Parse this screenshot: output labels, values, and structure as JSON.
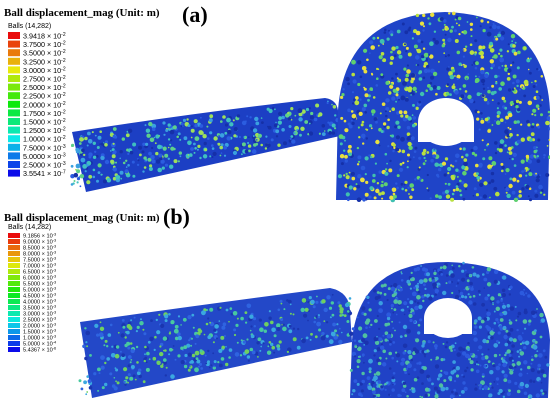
{
  "panels": [
    {
      "title": "Ball displacement_mag (Unit: m)",
      "label": "(a)",
      "legend_header": "Balls (14,282)",
      "legend": [
        {
          "mantissa": "3.9418 × 10",
          "exponent": "-2"
        },
        {
          "mantissa": "3.7500 × 10",
          "exponent": "-2"
        },
        {
          "mantissa": "3.5000 × 10",
          "exponent": "-2"
        },
        {
          "mantissa": "3.2500 × 10",
          "exponent": "-2"
        },
        {
          "mantissa": "3.0000 × 10",
          "exponent": "-2"
        },
        {
          "mantissa": "2.7500 × 10",
          "exponent": "-2"
        },
        {
          "mantissa": "2.5000 × 10",
          "exponent": "-2"
        },
        {
          "mantissa": "2.2500 × 10",
          "exponent": "-2"
        },
        {
          "mantissa": "2.0000 × 10",
          "exponent": "-2"
        },
        {
          "mantissa": "1.7500 × 10",
          "exponent": "-2"
        },
        {
          "mantissa": "1.5000 × 10",
          "exponent": "-2"
        },
        {
          "mantissa": "1.2500 × 10",
          "exponent": "-2"
        },
        {
          "mantissa": "1.0000 × 10",
          "exponent": "-2"
        },
        {
          "mantissa": "7.5000 × 10",
          "exponent": "-3"
        },
        {
          "mantissa": "5.0000 × 10",
          "exponent": "-3"
        },
        {
          "mantissa": "2.5000 × 10",
          "exponent": "-3"
        },
        {
          "mantissa": "3.5541 × 10",
          "exponent": "-7"
        }
      ]
    },
    {
      "title": "Ball displacement_mag (Unit: m)",
      "label": "(b)",
      "legend_header": "Balls (14,282)",
      "legend": [
        {
          "mantissa": "9.1856 × 10",
          "exponent": "-3"
        },
        {
          "mantissa": "9.0000 × 10",
          "exponent": "-3"
        },
        {
          "mantissa": "8.5000 × 10",
          "exponent": "-3"
        },
        {
          "mantissa": "8.0000 × 10",
          "exponent": "-3"
        },
        {
          "mantissa": "7.5000 × 10",
          "exponent": "-3"
        },
        {
          "mantissa": "7.0000 × 10",
          "exponent": "-3"
        },
        {
          "mantissa": "6.5000 × 10",
          "exponent": "-3"
        },
        {
          "mantissa": "6.0000 × 10",
          "exponent": "-3"
        },
        {
          "mantissa": "5.5000 × 10",
          "exponent": "-3"
        },
        {
          "mantissa": "5.0000 × 10",
          "exponent": "-3"
        },
        {
          "mantissa": "4.5000 × 10",
          "exponent": "-3"
        },
        {
          "mantissa": "4.0000 × 10",
          "exponent": "-3"
        },
        {
          "mantissa": "3.5000 × 10",
          "exponent": "-3"
        },
        {
          "mantissa": "3.0000 × 10",
          "exponent": "-3"
        },
        {
          "mantissa": "2.5000 × 10",
          "exponent": "-3"
        },
        {
          "mantissa": "2.0000 × 10",
          "exponent": "-3"
        },
        {
          "mantissa": "1.5000 × 10",
          "exponent": "-3"
        },
        {
          "mantissa": "1.0000 × 10",
          "exponent": "-3"
        },
        {
          "mantissa": "5.0000 × 10",
          "exponent": "-4"
        },
        {
          "mantissa": "5.4367 × 10",
          "exponent": "-6"
        }
      ]
    }
  ]
}
